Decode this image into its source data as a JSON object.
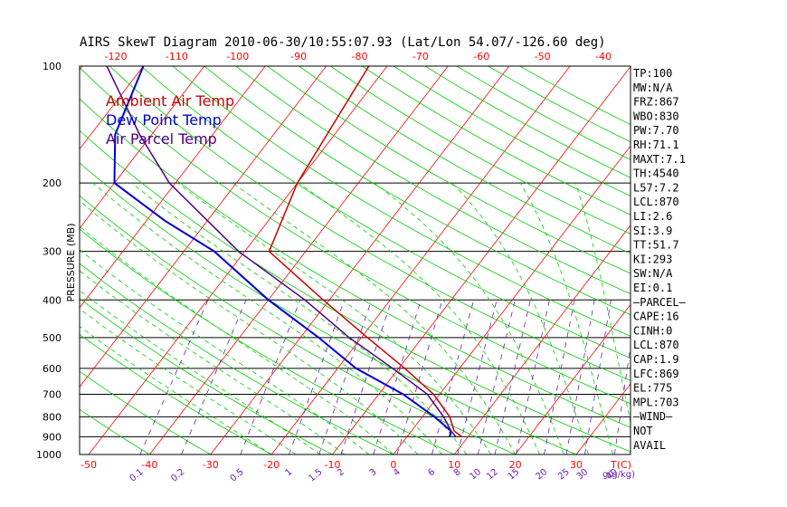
{
  "chart_data": {
    "type": "line",
    "title": "AIRS SkewT Diagram 2010-06-30/10:55:07.93 (Lat/Lon 54.07/-126.60 deg)",
    "ylabel": "PRESSURE (MB)",
    "pressure_ticks": [
      100,
      200,
      300,
      400,
      500,
      600,
      700,
      800,
      900,
      1000
    ],
    "temp_ticks_top": [
      -120,
      -110,
      -100,
      -90,
      -80,
      -70,
      -60,
      -50,
      -40
    ],
    "temp_ticks_bottom": [
      -50,
      -40,
      -30,
      -20,
      -10,
      0,
      10,
      20,
      30
    ],
    "temp_unit_label": "T(C)",
    "mixing_ratio_ticks": [
      "0.1",
      "0.2",
      "0.5",
      "1",
      "1.5",
      "2",
      "3",
      "4",
      "6",
      "8",
      "10",
      "12",
      "15",
      "20",
      "25",
      "30",
      "40"
    ],
    "mixing_ratio_unit": "g(g/kg)",
    "legend": [
      "Ambient Air Temp",
      "Dew Point Temp",
      "Air Parcel Temp"
    ],
    "colors": {
      "ambient": "#cc0000",
      "dewpoint": "#0000cc",
      "parcel": "#4b0082",
      "isotherm": "#ff0000",
      "dry_adiabat": "#00cc00",
      "moist_adiabat": "#00cc00",
      "mixing_ratio": "#6a1fb0"
    },
    "series": [
      {
        "name": "Ambient Air Temp",
        "points": [
          {
            "p": 100,
            "t": -53
          },
          {
            "p": 200,
            "t": -50
          },
          {
            "p": 300,
            "t": -46
          },
          {
            "p": 400,
            "t": -31
          },
          {
            "p": 500,
            "t": -19
          },
          {
            "p": 600,
            "t": -9
          },
          {
            "p": 700,
            "t": -1
          },
          {
            "p": 800,
            "t": 4.5
          },
          {
            "p": 870,
            "t": 7
          },
          {
            "p": 900,
            "t": 9
          }
        ]
      },
      {
        "name": "Dew Point Temp",
        "points": [
          {
            "p": 100,
            "t": -90
          },
          {
            "p": 150,
            "t": -86
          },
          {
            "p": 200,
            "t": -80
          },
          {
            "p": 250,
            "t": -67
          },
          {
            "p": 300,
            "t": -55
          },
          {
            "p": 400,
            "t": -40
          },
          {
            "p": 500,
            "t": -27
          },
          {
            "p": 600,
            "t": -17
          },
          {
            "p": 700,
            "t": -6
          },
          {
            "p": 800,
            "t": 2
          },
          {
            "p": 870,
            "t": 6.5
          },
          {
            "p": 900,
            "t": 7
          }
        ]
      },
      {
        "name": "Air Parcel Temp",
        "points": [
          {
            "p": 100,
            "t": -96
          },
          {
            "p": 150,
            "t": -82
          },
          {
            "p": 200,
            "t": -71
          },
          {
            "p": 300,
            "t": -51
          },
          {
            "p": 400,
            "t": -34
          },
          {
            "p": 500,
            "t": -22
          },
          {
            "p": 600,
            "t": -11
          },
          {
            "p": 700,
            "t": -2
          },
          {
            "p": 800,
            "t": 3.5
          },
          {
            "p": 870,
            "t": 6.5
          },
          {
            "p": 900,
            "t": 8
          }
        ]
      }
    ],
    "indices": [
      "TP:100",
      "MW:N/A",
      "FRZ:867",
      "WBO:830",
      "PW:7.70",
      "RH:71.1",
      "MAXT:7.1",
      "TH:4540",
      "L57:7.2",
      "LCL:870",
      "LI:2.6",
      "SI:3.9",
      "TT:51.7",
      "KI:293",
      "SW:N/A",
      "EI:0.1",
      "—PARCEL—",
      "CAPE:16",
      "CINH:0",
      "LCL:870",
      "CAP:1.9",
      "LFC:869",
      "EL:775",
      "MPL:703",
      "—WIND—",
      "NOT",
      "AVAIL"
    ]
  }
}
